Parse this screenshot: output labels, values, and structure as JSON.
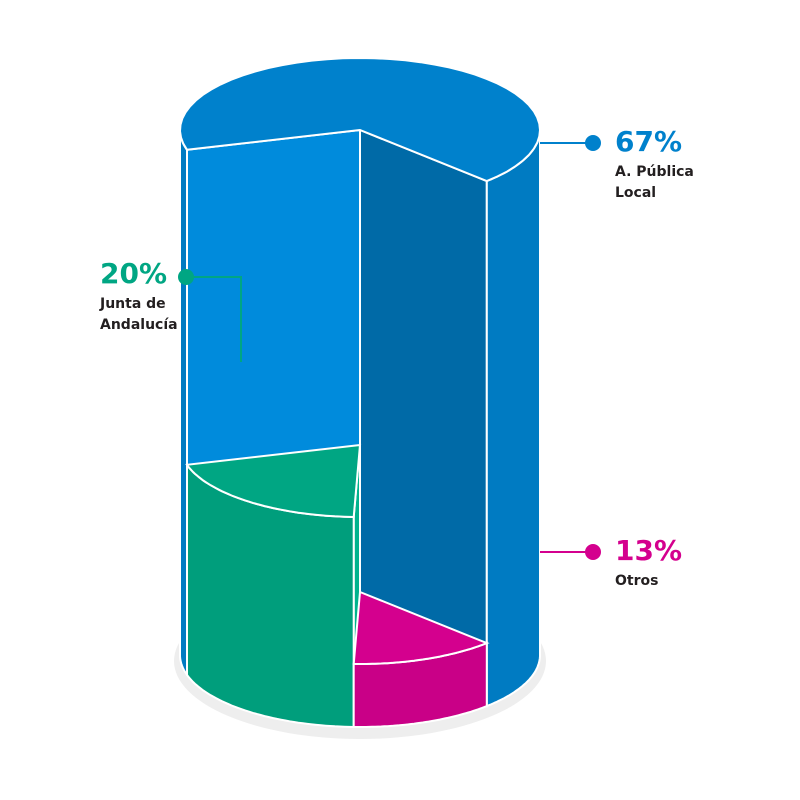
{
  "chart_data": {
    "type": "pie",
    "categories": [
      "A. Pública Local",
      "Junta de Andalucía",
      "Otros"
    ],
    "values": [
      67,
      20,
      13
    ],
    "value_labels": [
      "67%",
      "20%",
      "13%"
    ],
    "colors": [
      "#0081cc",
      "#00a683",
      "#d4008e"
    ]
  }
}
